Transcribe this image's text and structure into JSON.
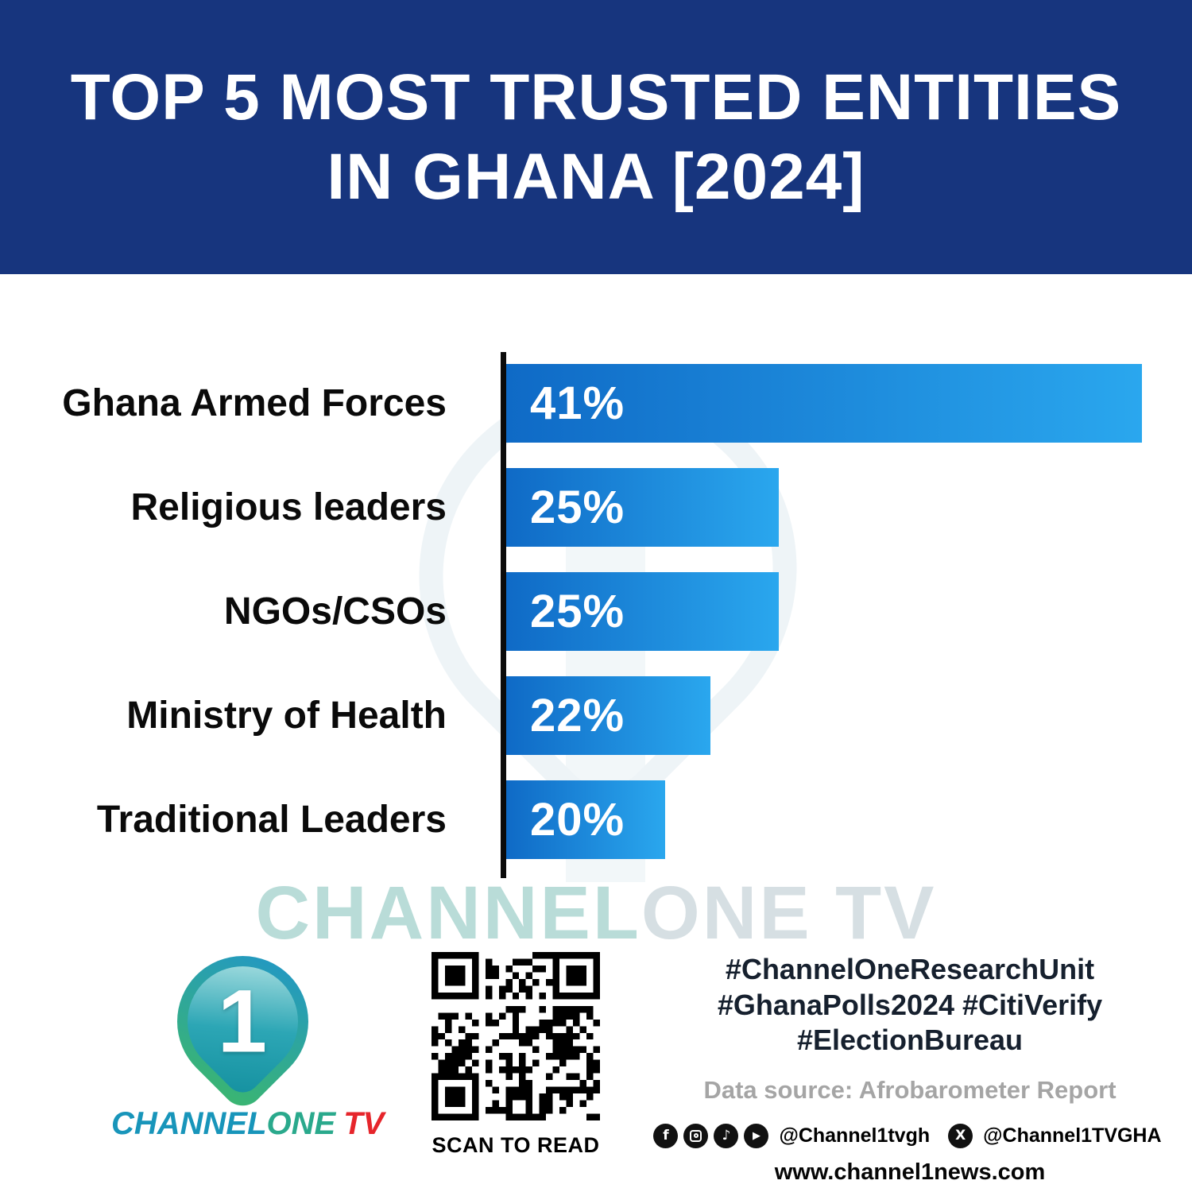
{
  "header": {
    "title_line1": "TOP 5 MOST TRUSTED ENTITIES",
    "title_line2": "IN GHANA [2024]",
    "bg_color": "#17357e"
  },
  "chart_data": {
    "type": "bar",
    "orientation": "horizontal",
    "title": "Top 5 Most Trusted Entities in Ghana [2024]",
    "categories": [
      "Ghana Armed Forces",
      "Religious leaders",
      "NGOs/CSOs",
      "Ministry of Health",
      "Traditional Leaders"
    ],
    "values": [
      41,
      25,
      25,
      22,
      20
    ],
    "value_labels": [
      "41%",
      "25%",
      "25%",
      "22%",
      "20%"
    ],
    "unit": "%",
    "xlim": [
      13,
      41
    ],
    "grid": false,
    "legend": false,
    "bar_gradient": [
      "#0f6ac6",
      "#2aa7ee"
    ],
    "axis_color": "#0b0b0b"
  },
  "watermark": {
    "part1": "CHANNEL",
    "part2": "ONE TV"
  },
  "footer": {
    "logo": {
      "numeral": "1",
      "brand_channel": "CHANNEL",
      "brand_one": "ONE",
      "brand_tv": "TV"
    },
    "qr_caption": "SCAN TO READ",
    "hashtags": [
      "#ChannelOneResearchUnit",
      "#GhanaPolls2024 #CitiVerify",
      "#ElectionBureau"
    ],
    "data_source": "Data source: Afrobarometer Report",
    "social": {
      "handle_primary": "@Channel1tvgh",
      "handle_x": "@Channel1TVGHA",
      "icons": {
        "facebook": "f",
        "tiktok": "♪",
        "youtube": "▶",
        "x": "X"
      }
    },
    "website": "www.channel1news.com"
  },
  "colors": {
    "brand_teal": "#1895ba",
    "brand_green": "#2aa98c",
    "tv_red": "#e6252b",
    "header_blue": "#17357e"
  }
}
